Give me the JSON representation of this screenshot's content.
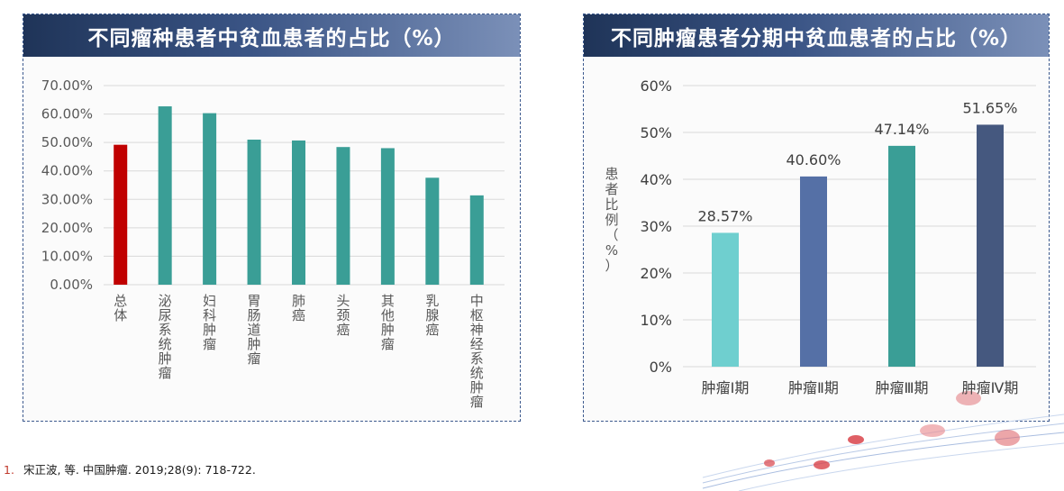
{
  "chart_data": [
    {
      "type": "bar",
      "title": "不同瘤种患者中贫血患者的占比（%）",
      "categories": [
        "总体",
        "泌尿系统肿瘤",
        "妇科肿瘤",
        "胃肠道肿瘤",
        "肺癌",
        "头颈癌",
        "其他肿瘤",
        "乳腺癌",
        "中枢神经系统肿瘤"
      ],
      "values": [
        49.2,
        62.7,
        60.3,
        51.0,
        50.7,
        48.4,
        48.0,
        37.6,
        31.4
      ],
      "yticks": [
        "0.00%",
        "10.00%",
        "20.00%",
        "30.00%",
        "40.00%",
        "50.00%",
        "60.00%",
        "70.00%"
      ],
      "ylim": [
        0,
        70
      ],
      "grid": true,
      "colors": [
        "#c00000",
        "#3a9e96",
        "#3a9e96",
        "#3a9e96",
        "#3a9e96",
        "#3a9e96",
        "#3a9e96",
        "#3a9e96",
        "#3a9e96"
      ]
    },
    {
      "type": "bar",
      "title": "不同肿瘤患者分期中贫血患者的占比（%）",
      "categories": [
        "肿瘤Ⅰ期",
        "肿瘤Ⅱ期",
        "肿瘤Ⅲ期",
        "肿瘤Ⅳ期"
      ],
      "values": [
        28.57,
        40.6,
        47.14,
        51.65
      ],
      "data_labels": [
        "28.57%",
        "40.60%",
        "47.14%",
        "51.65%"
      ],
      "ylabel": "患者比例（%）",
      "yticks": [
        "0%",
        "10%",
        "20%",
        "30%",
        "40%",
        "50%",
        "60%"
      ],
      "ylim": [
        0,
        60
      ],
      "grid": true,
      "colors": [
        "#6fcfcf",
        "#5570a6",
        "#3a9e96",
        "#45587f"
      ]
    }
  ],
  "footnote": {
    "number": "1.",
    "text": "宋正波, 等. 中国肿瘤. 2019;28(9): 718-722."
  }
}
